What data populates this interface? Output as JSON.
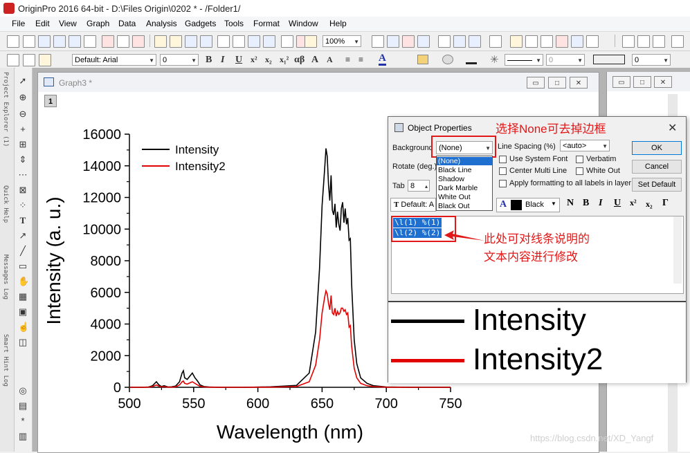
{
  "app": {
    "title": "OriginPro 2016 64-bit - D:\\Files Origin\\0202 * - /Folder1/"
  },
  "menu": [
    "File",
    "Edit",
    "View",
    "Graph",
    "Data",
    "Analysis",
    "Gadgets",
    "Tools",
    "Format",
    "Window",
    "Help"
  ],
  "toolbar": {
    "zoom": "100%",
    "font": "Default: Arial",
    "font_size": "0",
    "text_buttons": [
      "B",
      "I",
      "U",
      "x²",
      "x₂",
      "x₁²",
      "αβ",
      "A",
      "A"
    ],
    "line_width_value": "0",
    "right_value": "0"
  },
  "sidebar": {
    "tabs": [
      "Project Explorer (1)",
      "Quick Help",
      "Messages Log",
      "Smart Hint Log"
    ]
  },
  "graph_window": {
    "title": "Graph3 *",
    "layer": "1"
  },
  "chart_data": {
    "type": "line",
    "xlabel": "Wavelength (nm)",
    "ylabel": "Intensity (a. u.)",
    "xlim": [
      500,
      750
    ],
    "ylim": [
      0,
      16000
    ],
    "xticks": [
      500,
      550,
      600,
      650,
      700,
      750
    ],
    "yticks": [
      0,
      2000,
      4000,
      6000,
      8000,
      10000,
      12000,
      14000,
      16000
    ],
    "legend_position": "top-left",
    "series": [
      {
        "name": "Intensity",
        "color": "#000000",
        "x": [
          500,
          510,
          515,
          518,
          521,
          523,
          525,
          527,
          530,
          533,
          536,
          539,
          541,
          542,
          543,
          545,
          547,
          549,
          551,
          553,
          555,
          558,
          562,
          570,
          590,
          610,
          630,
          640,
          645,
          648,
          650,
          652,
          653,
          654,
          655,
          656,
          657,
          658,
          659,
          660,
          661,
          662,
          663,
          664,
          665,
          666,
          667,
          668,
          669,
          670,
          671,
          672,
          673,
          675,
          677,
          680,
          685,
          690,
          700,
          720,
          750
        ],
        "y": [
          0,
          0,
          20,
          100,
          350,
          150,
          50,
          100,
          20,
          30,
          80,
          350,
          900,
          1050,
          600,
          500,
          700,
          900,
          600,
          400,
          150,
          50,
          20,
          0,
          0,
          30,
          120,
          900,
          3500,
          7500,
          11500,
          13800,
          15100,
          14600,
          12800,
          11800,
          13400,
          11200,
          10900,
          11600,
          10100,
          11100,
          10300,
          9900,
          11300,
          11700,
          10400,
          11300,
          10300,
          10700,
          9300,
          9400,
          6500,
          3000,
          1500,
          600,
          250,
          100,
          20,
          0,
          0
        ]
      },
      {
        "name": "Intensity2",
        "color": "#e30000",
        "x": [
          500,
          510,
          515,
          518,
          521,
          523,
          525,
          527,
          530,
          533,
          536,
          539,
          541,
          542,
          543,
          545,
          547,
          549,
          551,
          553,
          555,
          558,
          562,
          570,
          590,
          610,
          630,
          640,
          645,
          648,
          650,
          652,
          653,
          654,
          655,
          656,
          657,
          658,
          659,
          660,
          661,
          662,
          663,
          664,
          665,
          666,
          667,
          668,
          669,
          670,
          671,
          672,
          673,
          675,
          677,
          680,
          685,
          690,
          700,
          720,
          750
        ],
        "y": [
          0,
          0,
          10,
          50,
          150,
          70,
          20,
          40,
          10,
          10,
          30,
          150,
          350,
          400,
          250,
          200,
          280,
          350,
          250,
          150,
          60,
          20,
          10,
          0,
          0,
          10,
          50,
          350,
          1400,
          3000,
          4700,
          5700,
          6100,
          5900,
          5300,
          4900,
          5800,
          4700,
          4600,
          5000,
          4500,
          4800,
          4600,
          4700,
          5000,
          5000,
          4800,
          4900,
          4600,
          4700,
          3800,
          3900,
          2600,
          1200,
          600,
          250,
          100,
          40,
          10,
          0,
          0
        ]
      }
    ]
  },
  "dialog": {
    "title": "Object Properties",
    "background_label": "Background",
    "background_value": "(None)",
    "background_options": [
      "(None)",
      "Black Line",
      "Shadow",
      "Dark Marble",
      "White Out",
      "Black Out"
    ],
    "rotate_label": "Rotate (deg.)",
    "tab_label": "Tab",
    "tab_value": "8",
    "font_value": "Default: A",
    "line_spacing_label": "Line Spacing (%)",
    "line_spacing_value": "<auto>",
    "use_system_font": "Use System Font",
    "verbatim": "Verbatim",
    "center_multi_line": "Center Multi Line",
    "white_out": "White Out",
    "apply_formatting": "Apply formatting to all labels in layer",
    "ok": "OK",
    "cancel": "Cancel",
    "set_default": "Set Default",
    "color_label": "Black",
    "format_buttons": [
      "N",
      "B",
      "I",
      "U",
      "x²",
      "x₂",
      "Γ"
    ],
    "text_lines": [
      "\\l(1) %(1)",
      "\\l(2) %(2)"
    ],
    "preview": {
      "line1": "Intensity",
      "line2": "Intensity2"
    }
  },
  "annotations": {
    "top": "选择None可去掉边框",
    "side_line1": "此处可对线条说明的",
    "side_line2": "文本内容进行修改",
    "color": "#e21818"
  },
  "watermark": "https://blog.csdn.net/XD_Yangf"
}
